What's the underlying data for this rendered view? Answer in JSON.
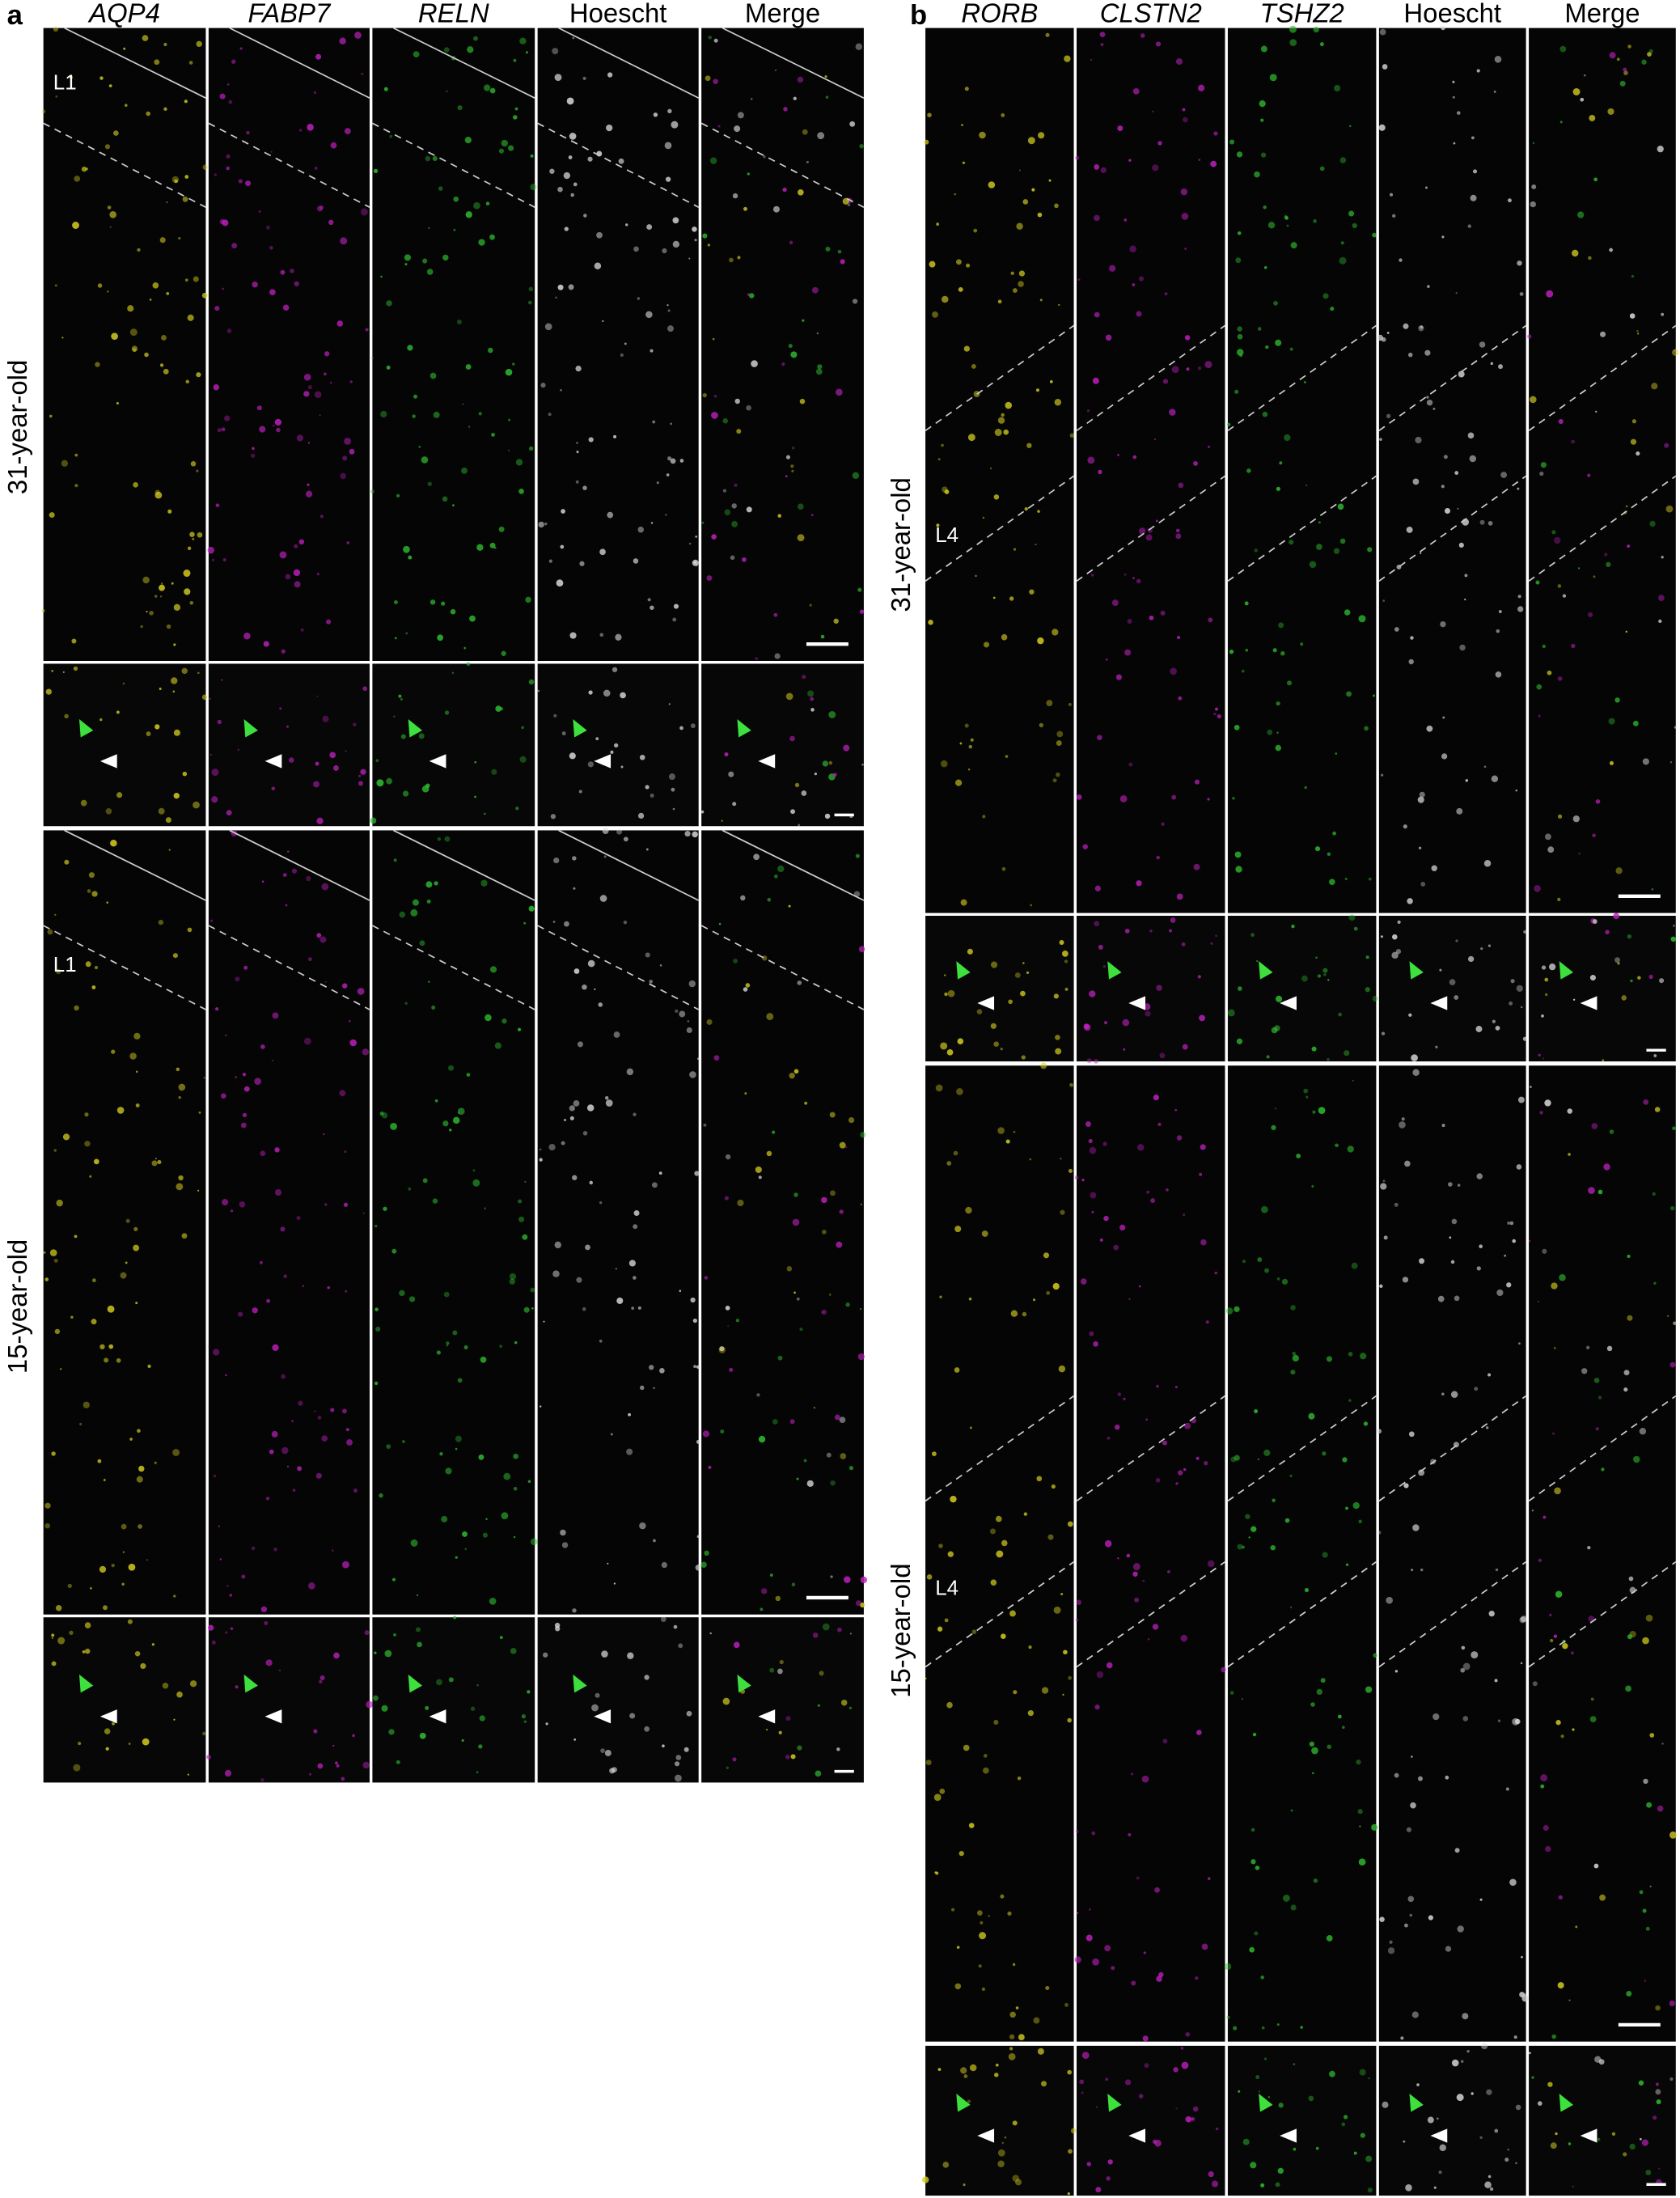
{
  "panels": [
    {
      "label": "a",
      "columns": [
        "AQP4",
        "FABP7",
        "RELN",
        "Hoescht",
        "Merge"
      ],
      "rows": [
        "31-year-old",
        "15-year-old"
      ],
      "layers": [
        "L1",
        "L1"
      ]
    },
    {
      "label": "b",
      "columns": [
        "RORB",
        "CLSTN2",
        "TSHZ2",
        "Hoescht",
        "Merge"
      ],
      "rows": [
        "31-year-old",
        "15-year-old"
      ],
      "layers": [
        "L4",
        "L4"
      ]
    }
  ]
}
